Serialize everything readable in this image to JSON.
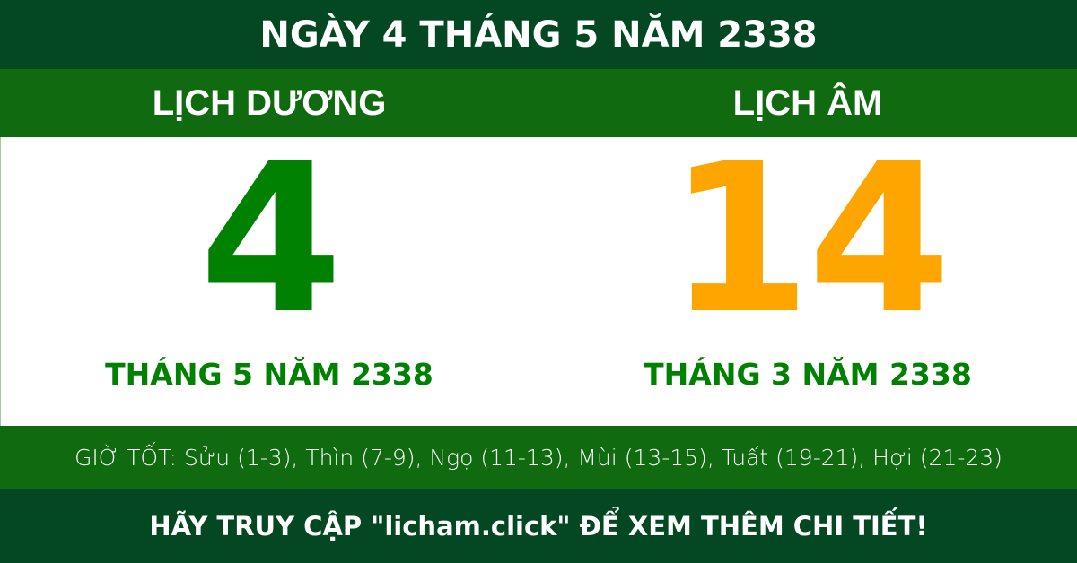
{
  "title": "NGÀY 4 THÁNG 5 NĂM 2338",
  "solar": {
    "label": "LỊCH DƯƠNG",
    "day": "4",
    "month_year": "THÁNG 5 NĂM 2338"
  },
  "lunar": {
    "label": "LỊCH ÂM",
    "day": "14",
    "month_year": "THÁNG 3 NĂM 2338"
  },
  "good_hours": "GIỜ TỐT: Sửu (1-3), Thìn (7-9), Ngọ (11-13), Mùi (13-15), Tuất (19-21), Hợi (21-23)",
  "footer": "HÃY TRUY CẬP \"licham.click\" ĐỂ XEM THÊM CHI TIẾT!",
  "colors": {
    "dark_green": "#034822",
    "green": "#106b10",
    "solar_text": "#018101",
    "lunar_text": "#ffa500"
  }
}
